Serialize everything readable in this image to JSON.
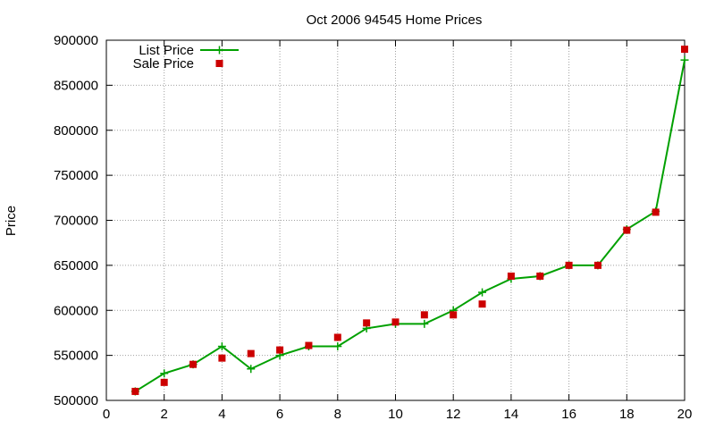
{
  "chart_data": {
    "type": "line",
    "title": "Oct 2006 94545 Home Prices",
    "xlabel": "",
    "ylabel": "Price",
    "xlim": [
      0,
      20
    ],
    "ylim": [
      500000,
      900000
    ],
    "x_ticks": [
      0,
      2,
      4,
      6,
      8,
      10,
      12,
      14,
      16,
      18,
      20
    ],
    "x_tick_labels": [
      "0",
      "2",
      "4",
      "6",
      "8",
      "10",
      "12",
      "14",
      "16",
      "18",
      "20"
    ],
    "y_ticks": [
      500000,
      550000,
      600000,
      650000,
      700000,
      750000,
      800000,
      850000,
      900000
    ],
    "y_tick_labels": [
      "500000",
      "550000",
      "600000",
      "650000",
      "700000",
      "750000",
      "800000",
      "850000",
      "900000"
    ],
    "grid": true,
    "legend_position": "top-left",
    "series": [
      {
        "name": "List Price",
        "style": "line-with-plus-markers",
        "color": "#00a000",
        "x": [
          1,
          2,
          3,
          4,
          5,
          6,
          7,
          8,
          9,
          10,
          11,
          12,
          13,
          14,
          15,
          16,
          17,
          18,
          19,
          20
        ],
        "values": [
          510000,
          530000,
          540000,
          560000,
          535000,
          550000,
          560000,
          560000,
          580000,
          585000,
          585000,
          600000,
          620000,
          635000,
          638000,
          650000,
          650000,
          690000,
          710000,
          878000
        ]
      },
      {
        "name": "Sale Price",
        "style": "square-points",
        "color": "#cc0000",
        "x": [
          1,
          2,
          3,
          4,
          5,
          6,
          7,
          8,
          9,
          10,
          11,
          12,
          13,
          14,
          15,
          16,
          17,
          18,
          19,
          20
        ],
        "values": [
          510000,
          520000,
          540000,
          547000,
          552000,
          556000,
          561000,
          570000,
          586000,
          587000,
          595000,
          595000,
          607000,
          638000,
          638000,
          650000,
          650000,
          689000,
          709000,
          890000
        ]
      }
    ]
  }
}
